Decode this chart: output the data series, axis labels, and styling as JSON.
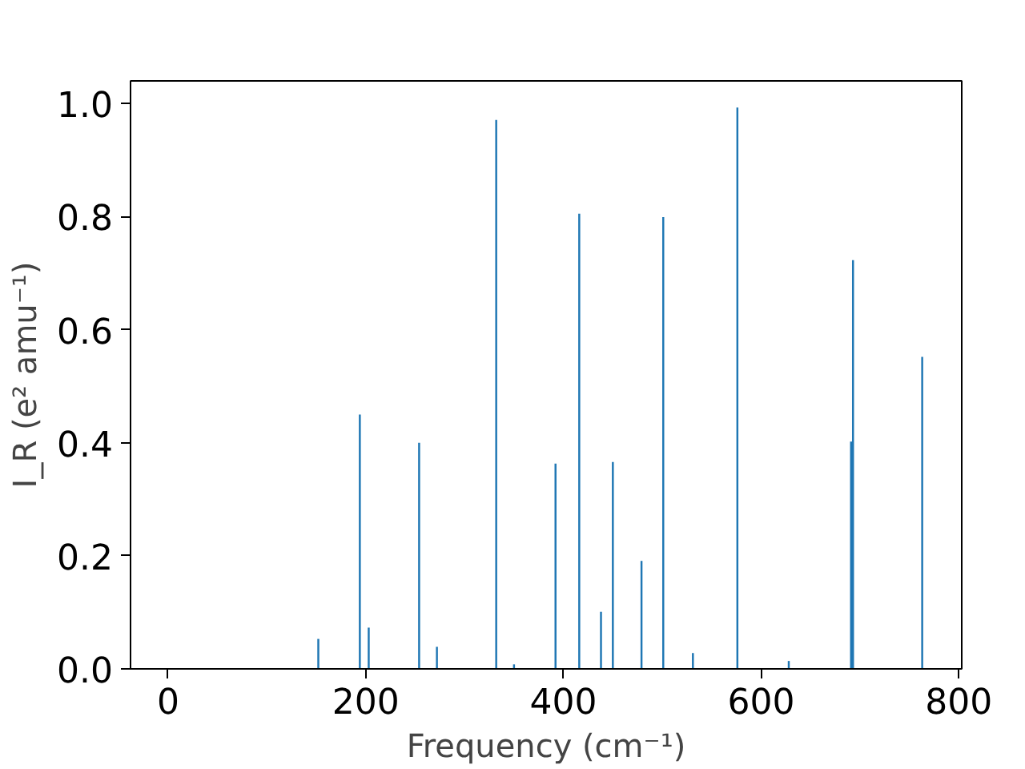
{
  "chart_data": {
    "type": "bar",
    "xlabel": "Frequency (cm⁻¹)",
    "ylabel": "I_R (e² amu⁻¹)",
    "x": [
      152,
      194,
      203,
      254,
      272,
      332,
      350,
      392,
      416,
      438,
      444,
      450,
      479,
      501,
      531,
      576,
      628,
      691,
      693,
      763
    ],
    "values": [
      0.053,
      0.45,
      0.073,
      0.4,
      0.039,
      0.971,
      0.008,
      0.363,
      0.805,
      0.101,
      null,
      0.366,
      0.191,
      0.799,
      0.028,
      0.993,
      0.014,
      0.402,
      0.723,
      0.552
    ],
    "color": "#1f77b4",
    "xlim": [
      -38,
      803
    ],
    "xticks": [
      0,
      200,
      400,
      600,
      800
    ],
    "ylim": [
      0,
      1.04
    ],
    "yticks": [
      {
        "value": 0,
        "label": "0.0"
      },
      {
        "value": 0.2,
        "label": "0.2"
      },
      {
        "value": 0.4,
        "label": "0.4"
      },
      {
        "value": 0.6,
        "label": "0.6"
      },
      {
        "value": 0.8,
        "label": "0.8"
      },
      {
        "value": 1.0,
        "label": "1.0"
      }
    ],
    "grid": false
  }
}
